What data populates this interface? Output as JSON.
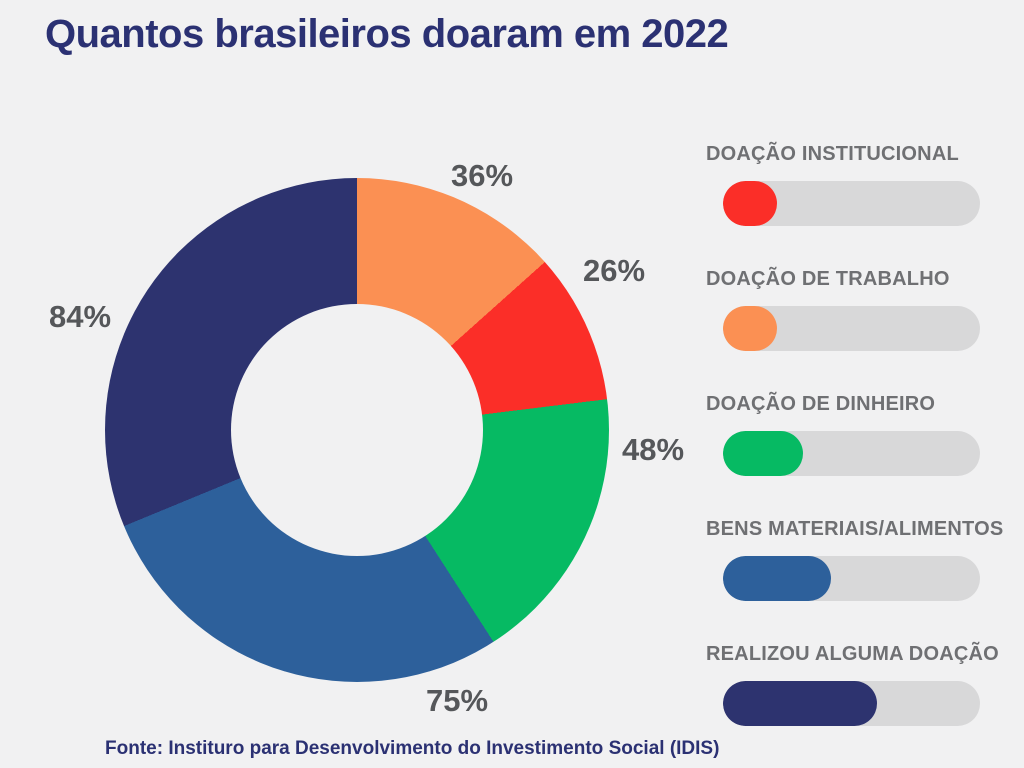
{
  "page": {
    "background": "#F1F1F2",
    "title": "Quantos brasileiros doaram em 2022",
    "title_color": "#2B3173",
    "source": "Fonte: Instituro para Desenvolvimento do Investimento Social (IDIS)"
  },
  "chart_data": {
    "type": "pie",
    "subtype": "donut",
    "title": "Quantos brasileiros doaram em 2022",
    "unit": "%",
    "start_angle_deg": 0,
    "direction": "clockwise",
    "inner_radius_ratio": 0.5,
    "segments": [
      {
        "label": "DOAÇÃO DE TRABALHO",
        "value": 36,
        "display": "36%",
        "color": "#FB9053"
      },
      {
        "label": "DOAÇÃO INSTITUCIONAL",
        "value": 26,
        "display": "26%",
        "color": "#FB2E28"
      },
      {
        "label": "DOAÇÃO DE DINHEIRO",
        "value": 48,
        "display": "48%",
        "color": "#06BA63"
      },
      {
        "label": "BENS MATERIAIS/ALIMENTOS",
        "value": 75,
        "display": "75%",
        "color": "#2D609B"
      },
      {
        "label": "REALIZOU ALGUMA DOAÇÃO",
        "value": 84,
        "display": "84%",
        "color": "#2D336F"
      }
    ],
    "value_label_color": "#55575A",
    "note": "segment angles proportional to values, total = 269"
  },
  "legend": {
    "track_color": "#D8D8D9",
    "label_color": "#6F7073",
    "items": [
      {
        "label": "DOAÇÃO INSTITUCIONAL",
        "color": "#FB2E28",
        "fill_pct": 21
      },
      {
        "label": "DOAÇÃO DE TRABALHO",
        "color": "#FB9053",
        "fill_pct": 21
      },
      {
        "label": "DOAÇÃO DE DINHEIRO",
        "color": "#06BA63",
        "fill_pct": 31
      },
      {
        "label": "BENS MATERIAIS/ALIMENTOS",
        "color": "#2D609B",
        "fill_pct": 42
      },
      {
        "label": "REALIZOU ALGUMA DOAÇÃO",
        "color": "#2D336F",
        "fill_pct": 60
      }
    ]
  }
}
